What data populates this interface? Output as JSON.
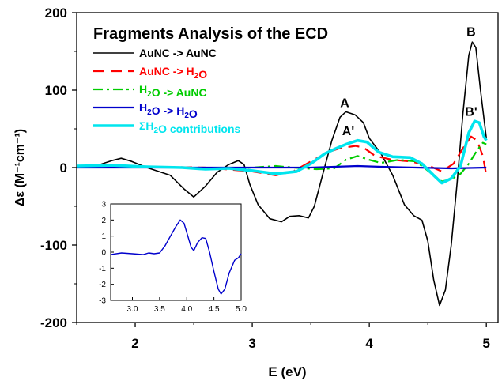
{
  "chart_data": [
    {
      "type": "line",
      "title": "Fragments Analysis of the ECD",
      "xlabel": "E (eV)",
      "ylabel": "Δε (M⁻¹cm⁻¹)",
      "xlim": [
        1.5,
        5.1
      ],
      "ylim": [
        -200,
        200
      ],
      "xticks": [
        2,
        3,
        4,
        5
      ],
      "yticks": [
        200,
        100,
        0,
        -100,
        -200
      ],
      "legend_placement": "top-left",
      "grid": false,
      "series": [
        {
          "name": "AuNC -> AuNC",
          "color": "#000000",
          "points": [
            [
              1.5,
              0
            ],
            [
              1.7,
              4
            ],
            [
              1.8,
              9
            ],
            [
              1.88,
              12
            ],
            [
              1.97,
              8
            ],
            [
              2.1,
              0
            ],
            [
              2.3,
              -10
            ],
            [
              2.42,
              -28
            ],
            [
              2.5,
              -38
            ],
            [
              2.6,
              -24
            ],
            [
              2.7,
              -6
            ],
            [
              2.8,
              4
            ],
            [
              2.88,
              9
            ],
            [
              2.93,
              4
            ],
            [
              2.98,
              -22
            ],
            [
              3.05,
              -48
            ],
            [
              3.15,
              -66
            ],
            [
              3.25,
              -70
            ],
            [
              3.32,
              -63
            ],
            [
              3.4,
              -62
            ],
            [
              3.48,
              -65
            ],
            [
              3.53,
              -50
            ],
            [
              3.6,
              -10
            ],
            [
              3.68,
              35
            ],
            [
              3.75,
              65
            ],
            [
              3.8,
              72
            ],
            [
              3.88,
              68
            ],
            [
              3.95,
              58
            ],
            [
              4.0,
              38
            ],
            [
              4.1,
              18
            ],
            [
              4.2,
              -10
            ],
            [
              4.3,
              -48
            ],
            [
              4.38,
              -62
            ],
            [
              4.45,
              -68
            ],
            [
              4.5,
              -95
            ],
            [
              4.55,
              -145
            ],
            [
              4.6,
              -178
            ],
            [
              4.65,
              -158
            ],
            [
              4.7,
              -100
            ],
            [
              4.75,
              -20
            ],
            [
              4.8,
              70
            ],
            [
              4.85,
              145
            ],
            [
              4.88,
              162
            ],
            [
              4.91,
              155
            ],
            [
              4.95,
              100
            ],
            [
              5.0,
              38
            ]
          ]
        },
        {
          "name": "AuNC -> H2O",
          "color": "#ff0000",
          "points": [
            [
              1.5,
              1
            ],
            [
              1.8,
              2
            ],
            [
              2.2,
              1
            ],
            [
              2.6,
              0
            ],
            [
              3.0,
              -5
            ],
            [
              3.2,
              -10
            ],
            [
              3.35,
              -5
            ],
            [
              3.5,
              8
            ],
            [
              3.65,
              20
            ],
            [
              3.75,
              25
            ],
            [
              3.88,
              28
            ],
            [
              3.95,
              26
            ],
            [
              4.05,
              15
            ],
            [
              4.2,
              10
            ],
            [
              4.35,
              8
            ],
            [
              4.5,
              3
            ],
            [
              4.62,
              -5
            ],
            [
              4.72,
              5
            ],
            [
              4.8,
              25
            ],
            [
              4.87,
              40
            ],
            [
              4.92,
              35
            ],
            [
              4.97,
              15
            ],
            [
              5.0,
              -10
            ]
          ]
        },
        {
          "name": "H2O -> AuNC",
          "color": "#00cc00",
          "points": [
            [
              1.5,
              1
            ],
            [
              2.0,
              1
            ],
            [
              2.5,
              0
            ],
            [
              2.8,
              -1
            ],
            [
              3.0,
              0
            ],
            [
              3.2,
              2
            ],
            [
              3.35,
              0
            ],
            [
              3.55,
              -2
            ],
            [
              3.7,
              -1
            ],
            [
              3.8,
              10
            ],
            [
              3.9,
              15
            ],
            [
              4.0,
              10
            ],
            [
              4.1,
              6
            ],
            [
              4.25,
              10
            ],
            [
              4.4,
              8
            ],
            [
              4.55,
              -10
            ],
            [
              4.62,
              -18
            ],
            [
              4.7,
              -15
            ],
            [
              4.78,
              -8
            ],
            [
              4.85,
              5
            ],
            [
              4.92,
              22
            ],
            [
              4.97,
              32
            ],
            [
              5.0,
              30
            ]
          ]
        },
        {
          "name": "H2O -> H2O",
          "color": "#0000cc",
          "points": [
            [
              1.5,
              0
            ],
            [
              2.5,
              0
            ],
            [
              3.0,
              0
            ],
            [
              3.5,
              0
            ],
            [
              3.9,
              2
            ],
            [
              4.1,
              1
            ],
            [
              4.4,
              0
            ],
            [
              4.7,
              -1
            ],
            [
              5.0,
              0
            ]
          ]
        },
        {
          "name": "ΣH2O contributions",
          "color": "#00e5ee",
          "points": [
            [
              1.5,
              2
            ],
            [
              1.8,
              3
            ],
            [
              2.1,
              1
            ],
            [
              2.4,
              0
            ],
            [
              2.6,
              -2
            ],
            [
              2.8,
              -1
            ],
            [
              3.0,
              -4
            ],
            [
              3.2,
              -8
            ],
            [
              3.38,
              -5
            ],
            [
              3.5,
              5
            ],
            [
              3.62,
              18
            ],
            [
              3.72,
              25
            ],
            [
              3.8,
              30
            ],
            [
              3.9,
              35
            ],
            [
              3.98,
              33
            ],
            [
              4.08,
              20
            ],
            [
              4.2,
              14
            ],
            [
              4.35,
              13
            ],
            [
              4.45,
              5
            ],
            [
              4.55,
              -10
            ],
            [
              4.62,
              -20
            ],
            [
              4.7,
              -14
            ],
            [
              4.78,
              2
            ],
            [
              4.85,
              45
            ],
            [
              4.9,
              60
            ],
            [
              4.94,
              58
            ],
            [
              4.98,
              40
            ],
            [
              5.0,
              35
            ]
          ]
        }
      ],
      "annotations": [
        {
          "text": "A",
          "x": 3.79,
          "y": 78
        },
        {
          "text": "A'",
          "x": 3.82,
          "y": 42
        },
        {
          "text": "B",
          "x": 4.87,
          "y": 170
        },
        {
          "text": "B'",
          "x": 4.87,
          "y": 67
        }
      ]
    },
    {
      "type": "line",
      "title": "",
      "xlim": [
        2.6,
        5.0
      ],
      "ylim": [
        -3,
        3
      ],
      "xticks": [
        3.0,
        3.5,
        4.0,
        4.5,
        5.0
      ],
      "yticks": [
        3,
        2,
        1,
        0,
        -1,
        -2,
        -3
      ],
      "grid": false,
      "series": [
        {
          "color": "#0000cc",
          "points": [
            [
              2.6,
              -0.15
            ],
            [
              2.8,
              -0.05
            ],
            [
              3.0,
              -0.1
            ],
            [
              3.2,
              -0.15
            ],
            [
              3.3,
              -0.05
            ],
            [
              3.4,
              -0.1
            ],
            [
              3.5,
              -0.05
            ],
            [
              3.6,
              0.4
            ],
            [
              3.7,
              1.0
            ],
            [
              3.8,
              1.6
            ],
            [
              3.88,
              2.0
            ],
            [
              3.95,
              1.8
            ],
            [
              4.02,
              1.0
            ],
            [
              4.08,
              0.3
            ],
            [
              4.13,
              0.1
            ],
            [
              4.2,
              0.6
            ],
            [
              4.28,
              0.9
            ],
            [
              4.35,
              0.85
            ],
            [
              4.42,
              0.0
            ],
            [
              4.5,
              -1.2
            ],
            [
              4.58,
              -2.3
            ],
            [
              4.63,
              -2.6
            ],
            [
              4.7,
              -2.3
            ],
            [
              4.78,
              -1.3
            ],
            [
              4.88,
              -0.5
            ],
            [
              4.95,
              -0.35
            ],
            [
              5.0,
              -0.1
            ]
          ]
        }
      ]
    }
  ],
  "labels": {
    "inset_ticks_x": [
      "3.0",
      "3.5",
      "4.0",
      "4.5",
      "5.0"
    ],
    "inset_ticks_y": [
      "3",
      "2",
      "1",
      "0",
      "-1",
      "-2",
      "-3"
    ]
  }
}
